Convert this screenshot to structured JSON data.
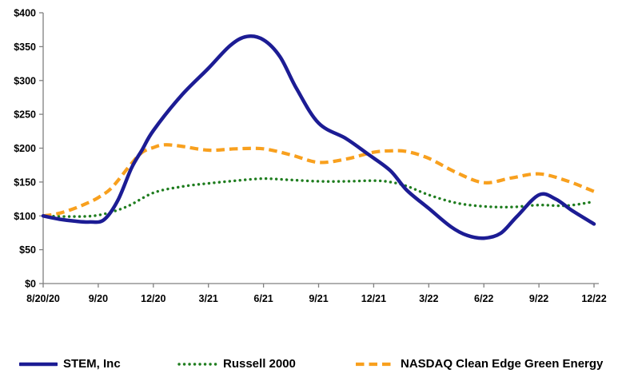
{
  "chart_data": {
    "type": "line",
    "title": "",
    "xlabel": "",
    "ylabel": "",
    "grid": false,
    "legend_position": "bottom",
    "ylim": [
      0,
      400
    ],
    "y_step": 50,
    "y_tick_labels": [
      "$0",
      "$50",
      "$100",
      "$150",
      "$200",
      "$250",
      "$300",
      "$350",
      "$400"
    ],
    "x_tick_labels": [
      "8/20/20",
      "9/20",
      "12/20",
      "3/21",
      "6/21",
      "9/21",
      "12/21",
      "3/22",
      "6/22",
      "9/22",
      "12/22"
    ],
    "axis_color": "#808080",
    "text_color": "#000000",
    "series": [
      {
        "name": "STEM, Inc",
        "color": "#1c1c94",
        "style": "solid",
        "x": [
          0,
          0.3,
          0.6,
          0.85,
          1.1,
          1.35,
          1.6,
          1.8,
          2.0,
          2.5,
          3.0,
          3.4,
          3.7,
          4.0,
          4.3,
          4.6,
          5.0,
          5.5,
          5.9,
          6.3,
          6.6,
          7.0,
          7.4,
          7.7,
          8.0,
          8.3,
          8.6,
          9.0,
          9.3,
          9.6,
          10.0
        ],
        "values": [
          100,
          95,
          92,
          91,
          94,
          122,
          170,
          198,
          226,
          277,
          318,
          352,
          365,
          360,
          335,
          288,
          237,
          214,
          191,
          167,
          138,
          111,
          84,
          71,
          67,
          74,
          99,
          131,
          125,
          108,
          88
        ]
      },
      {
        "name": "Russell 2000",
        "color": "#1f7d1f",
        "style": "dotted",
        "x": [
          0,
          0.5,
          1.0,
          1.5,
          2.0,
          2.5,
          3.0,
          3.5,
          4.0,
          4.5,
          5.0,
          5.5,
          6.0,
          6.3,
          6.6,
          7.0,
          7.5,
          8.0,
          8.5,
          9.0,
          9.5,
          10.0
        ],
        "values": [
          100,
          99,
          101,
          113,
          134,
          143,
          148,
          152,
          155,
          153,
          151,
          151,
          152,
          150,
          144,
          131,
          119,
          114,
          113,
          116,
          115,
          121
        ]
      },
      {
        "name": "NASDAQ Clean Edge Green Energy",
        "color": "#f8a01e",
        "style": "dashed",
        "x": [
          0,
          0.25,
          0.5,
          0.75,
          1.0,
          1.25,
          1.6,
          1.8,
          2.0,
          2.2,
          2.5,
          3.0,
          3.5,
          4.0,
          4.5,
          5.0,
          5.5,
          6.0,
          6.3,
          6.6,
          7.0,
          7.5,
          8.0,
          8.5,
          9.0,
          9.5,
          10.0
        ],
        "values": [
          100,
          103,
          109,
          117,
          127,
          142,
          177,
          194,
          201,
          205,
          203,
          197,
          199,
          199,
          190,
          179,
          184,
          194,
          196,
          195,
          185,
          164,
          149,
          156,
          162,
          152,
          136
        ]
      }
    ]
  }
}
